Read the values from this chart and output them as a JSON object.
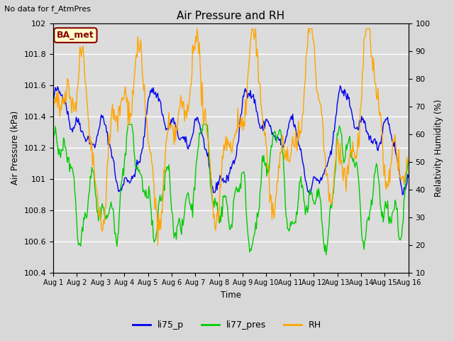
{
  "title": "Air Pressure and RH",
  "top_left_text": "No data for f_AtmPres",
  "annotation_box": "BA_met",
  "xlabel": "Time",
  "ylabel_left": "Air Pressure (kPa)",
  "ylabel_right": "Relativity Humidity (%)",
  "ylim_left": [
    100.4,
    102.0
  ],
  "ylim_right": [
    10,
    100
  ],
  "yticks_left": [
    100.4,
    100.6,
    100.8,
    101.0,
    101.2,
    101.4,
    101.6,
    101.8,
    102.0
  ],
  "yticks_right": [
    10,
    20,
    30,
    40,
    50,
    60,
    70,
    80,
    90,
    100
  ],
  "xtick_labels": [
    "Aug 1",
    "Aug 2",
    "Aug 3",
    "Aug 4",
    "Aug 5",
    "Aug 6",
    "Aug 7",
    "Aug 8",
    "Aug 9",
    "Aug 10",
    "Aug 11",
    "Aug 12",
    "Aug 13",
    "Aug 14",
    "Aug 15",
    "Aug 16"
  ],
  "color_li75_p": "#0000EE",
  "color_li77_pres": "#00CC00",
  "color_rh": "#FFA500",
  "line_width": 1.0,
  "bg_color": "#D8D8D8",
  "plot_bg_color": "#DCDCDC",
  "legend_labels": [
    "li75_p",
    "li77_pres",
    "RH"
  ],
  "n_points": 480,
  "annotation_facecolor": "#FFFFCC",
  "annotation_edgecolor": "#8B0000",
  "annotation_textcolor": "#8B0000"
}
